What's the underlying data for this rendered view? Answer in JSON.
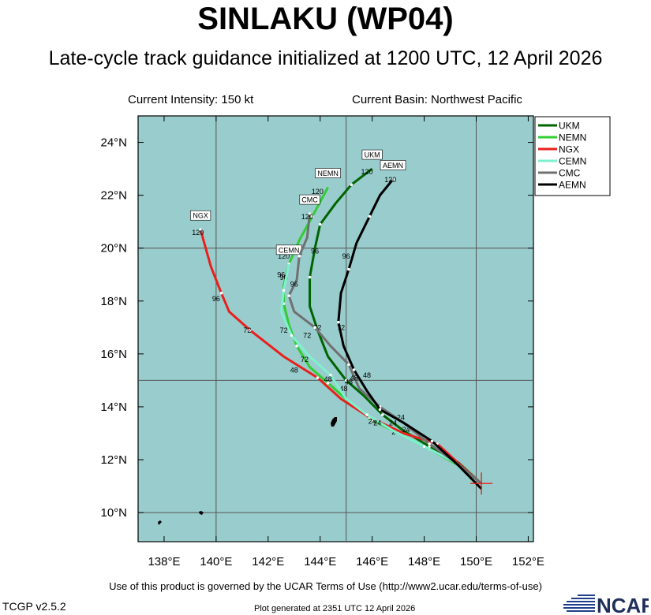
{
  "header": {
    "title": "SINLAKU (WP04)",
    "subtitle": "Late-cycle track guidance initialized at 1200 UTC, 12 April 2026",
    "intensity": "Current Intensity: 150 kt",
    "basin": "Current Basin: Northwest Pacific"
  },
  "footer": {
    "terms": "Use of this product is governed by the UCAR Terms of Use (http://www2.ucar.edu/terms-of-use)",
    "version": "TCGP v2.5.2",
    "generated": "Plot generated at 2351 UTC   12 April 2026",
    "logo_text": "NCAR"
  },
  "map": {
    "lon_range": [
      137,
      152.2
    ],
    "lat_range": [
      8.9,
      25.0
    ],
    "ocean_color": "#99CCCC",
    "land_color": "#000000",
    "x_ticks": [
      {
        "lon": 138,
        "label": "138°E"
      },
      {
        "lon": 140,
        "label": "140°E"
      },
      {
        "lon": 142,
        "label": "142°E"
      },
      {
        "lon": 144,
        "label": "144°E"
      },
      {
        "lon": 146,
        "label": "146°E"
      },
      {
        "lon": 148,
        "label": "148°E"
      },
      {
        "lon": 150,
        "label": "150°E"
      },
      {
        "lon": 152,
        "label": "152°E"
      }
    ],
    "y_ticks": [
      {
        "lat": 10,
        "label": "10°N"
      },
      {
        "lat": 12,
        "label": "12°N"
      },
      {
        "lat": 14,
        "label": "14°N"
      },
      {
        "lat": 16,
        "label": "16°N"
      },
      {
        "lat": 18,
        "label": "18°N"
      },
      {
        "lat": 20,
        "label": "20°N"
      },
      {
        "lat": 22,
        "label": "22°N"
      },
      {
        "lat": 24,
        "label": "24°N"
      }
    ],
    "grid_lons": [
      140,
      145,
      150
    ],
    "grid_lats": [
      10,
      15,
      20
    ],
    "current_position": {
      "lon": 150.2,
      "lat": 11.1
    }
  },
  "legend": [
    {
      "name": "UKM",
      "color": "#006400"
    },
    {
      "name": "NEMN",
      "color": "#33CC33"
    },
    {
      "name": "NGX",
      "color": "#E8201C"
    },
    {
      "name": "CEMN",
      "color": "#7FF0CF"
    },
    {
      "name": "CMC",
      "color": "#707070"
    },
    {
      "name": "AEMN",
      "color": "#000000"
    }
  ],
  "chart_data": {
    "type": "line",
    "title": "SINLAKU (WP04)",
    "xlabel": "",
    "ylabel": "",
    "xlim": [
      137,
      152.2
    ],
    "ylim": [
      8.9,
      25.0
    ],
    "series": [
      {
        "name": "UKM",
        "color": "#006400",
        "points": [
          [
            150.2,
            11.1
          ],
          [
            149.3,
            11.9
          ],
          [
            148.2,
            12.5
          ],
          [
            147.2,
            13.1
          ],
          [
            146.4,
            13.7
          ],
          [
            145.7,
            14.4
          ],
          [
            145.0,
            15.0
          ],
          [
            144.3,
            15.9
          ],
          [
            143.9,
            16.9
          ],
          [
            143.6,
            17.8
          ],
          [
            143.6,
            18.9
          ],
          [
            143.8,
            20.0
          ],
          [
            144.0,
            20.9
          ],
          [
            144.6,
            21.7
          ],
          [
            145.2,
            22.4
          ],
          [
            146.0,
            23.0
          ]
        ],
        "labels": [
          {
            "text": "24",
            "lon": 147.3,
            "lat": 13.05
          },
          {
            "text": "48",
            "lon": 145.1,
            "lat": 14.85
          },
          {
            "text": "72",
            "lon": 143.9,
            "lat": 16.9
          },
          {
            "text": "96",
            "lon": 143.8,
            "lat": 19.8
          },
          {
            "text": "120",
            "lon": 145.8,
            "lat": 22.8
          }
        ],
        "end_box": "UKM"
      },
      {
        "name": "NEMN",
        "color": "#33CC33",
        "points": [
          [
            150.2,
            11.1
          ],
          [
            149.3,
            11.8
          ],
          [
            148.2,
            12.4
          ],
          [
            147.0,
            13.0
          ],
          [
            146.0,
            13.5
          ],
          [
            145.1,
            14.2
          ],
          [
            144.3,
            14.9
          ],
          [
            143.6,
            15.5
          ],
          [
            143.1,
            16.3
          ],
          [
            142.8,
            17.1
          ],
          [
            142.6,
            17.9
          ],
          [
            142.6,
            18.6
          ],
          [
            142.8,
            19.4
          ],
          [
            143.2,
            20.3
          ],
          [
            143.7,
            21.2
          ],
          [
            144.3,
            22.3
          ]
        ],
        "labels": [
          {
            "text": "24",
            "lon": 146.9,
            "lat": 12.95
          },
          {
            "text": "48",
            "lon": 144.9,
            "lat": 14.6
          },
          {
            "text": "72",
            "lon": 143.4,
            "lat": 15.7
          },
          {
            "text": "96",
            "lon": 142.6,
            "lat": 18.8
          },
          {
            "text": "120",
            "lon": 143.9,
            "lat": 22.05
          }
        ],
        "end_box": "NEMN"
      },
      {
        "name": "NGX",
        "color": "#E8201C",
        "points": [
          [
            150.2,
            11.1
          ],
          [
            149.5,
            11.7
          ],
          [
            148.5,
            12.6
          ],
          [
            147.2,
            13.0
          ],
          [
            145.9,
            13.6
          ],
          [
            144.8,
            14.3
          ],
          [
            143.9,
            15.1
          ],
          [
            142.6,
            15.9
          ],
          [
            141.3,
            16.9
          ],
          [
            140.5,
            17.6
          ],
          [
            140.2,
            18.3
          ],
          [
            139.8,
            19.3
          ],
          [
            139.4,
            20.7
          ]
        ],
        "labels": [
          {
            "text": "24",
            "lon": 146.0,
            "lat": 13.35
          },
          {
            "text": "48",
            "lon": 143.0,
            "lat": 15.3
          },
          {
            "text": "72",
            "lon": 141.2,
            "lat": 16.8
          },
          {
            "text": "96",
            "lon": 140.0,
            "lat": 18.0
          },
          {
            "text": "120",
            "lon": 139.3,
            "lat": 20.5
          }
        ],
        "end_box": "NGX"
      },
      {
        "name": "CEMN",
        "color": "#7FF0CF",
        "points": [
          [
            150.2,
            11.1
          ],
          [
            149.2,
            11.9
          ],
          [
            148.0,
            12.5
          ],
          [
            146.8,
            13.1
          ],
          [
            145.8,
            13.7
          ],
          [
            145.0,
            14.3
          ],
          [
            144.4,
            15.2
          ],
          [
            143.6,
            15.9
          ],
          [
            142.9,
            16.7
          ],
          [
            142.5,
            17.6
          ],
          [
            142.6,
            18.4
          ],
          [
            142.8,
            19.4
          ]
        ],
        "labels": [
          {
            "text": "24",
            "lon": 146.2,
            "lat": 13.3
          },
          {
            "text": "48",
            "lon": 144.3,
            "lat": 14.95
          },
          {
            "text": "72",
            "lon": 142.6,
            "lat": 16.8
          },
          {
            "text": "96",
            "lon": 142.5,
            "lat": 18.9
          },
          {
            "text": "120",
            "lon": 142.6,
            "lat": 19.6
          }
        ],
        "end_box": "CEMN"
      },
      {
        "name": "CMC",
        "color": "#707070",
        "points": [
          [
            150.2,
            11.1
          ],
          [
            149.2,
            11.9
          ],
          [
            148.2,
            12.6
          ],
          [
            147.2,
            13.4
          ],
          [
            146.3,
            14.0
          ],
          [
            145.5,
            14.7
          ],
          [
            145.1,
            15.6
          ],
          [
            144.4,
            16.3
          ],
          [
            143.8,
            17.0
          ],
          [
            143.0,
            17.6
          ],
          [
            142.8,
            18.2
          ],
          [
            143.1,
            18.8
          ],
          [
            143.2,
            19.7
          ],
          [
            143.5,
            20.4
          ],
          [
            143.6,
            21.3
          ]
        ],
        "labels": [
          {
            "text": "24",
            "lon": 147.1,
            "lat": 13.5
          },
          {
            "text": "48",
            "lon": 145.3,
            "lat": 15.0
          },
          {
            "text": "72",
            "lon": 143.5,
            "lat": 16.6
          },
          {
            "text": "96",
            "lon": 143.0,
            "lat": 18.55
          },
          {
            "text": "120",
            "lon": 143.5,
            "lat": 21.1
          }
        ],
        "end_box": "CMC"
      },
      {
        "name": "AEMN",
        "color": "#000000",
        "points": [
          [
            150.2,
            10.9
          ],
          [
            149.3,
            11.8
          ],
          [
            148.3,
            12.7
          ],
          [
            147.2,
            13.4
          ],
          [
            146.3,
            13.9
          ],
          [
            145.8,
            14.6
          ],
          [
            145.3,
            15.4
          ],
          [
            144.9,
            16.3
          ],
          [
            144.7,
            17.2
          ],
          [
            144.8,
            18.3
          ],
          [
            145.1,
            19.2
          ],
          [
            145.4,
            20.2
          ],
          [
            145.9,
            21.2
          ],
          [
            146.3,
            22.0
          ],
          [
            146.8,
            22.6
          ]
        ],
        "labels": [
          {
            "text": "24",
            "lon": 146.8,
            "lat": 13.3
          },
          {
            "text": "48",
            "lon": 145.8,
            "lat": 15.1
          },
          {
            "text": "72",
            "lon": 144.8,
            "lat": 16.9
          },
          {
            "text": "96",
            "lon": 145.0,
            "lat": 19.6
          },
          {
            "text": "120",
            "lon": 146.7,
            "lat": 22.5
          }
        ],
        "end_box": "AEMN"
      }
    ]
  }
}
